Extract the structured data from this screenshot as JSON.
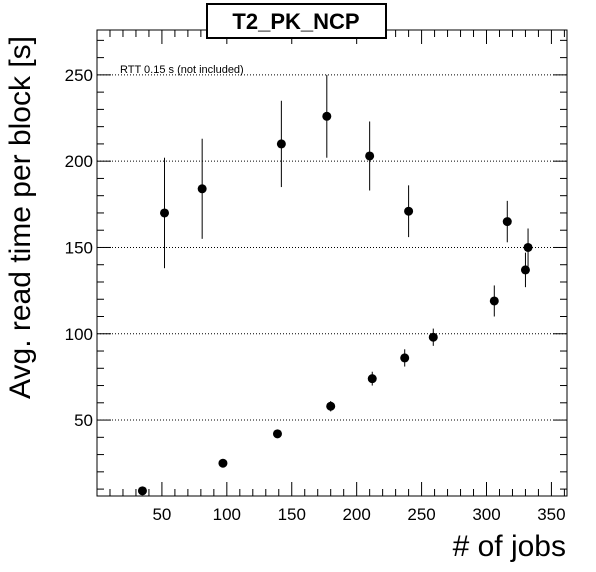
{
  "chart_data": {
    "type": "scatter",
    "title": "T2_PK_NCP",
    "xlabel": "# of jobs",
    "ylabel": "Avg. read time per block [s]",
    "annotation": "RTT 0.15 s (not included)",
    "xlim": [
      0,
      362
    ],
    "ylim": [
      6,
      276
    ],
    "x_ticks": [
      50,
      100,
      150,
      200,
      250,
      300,
      350
    ],
    "y_ticks": [
      50,
      100,
      150,
      200,
      250
    ],
    "grid": "horizontal dotted",
    "points": [
      {
        "x": 35,
        "y": 9,
        "err": 0
      },
      {
        "x": 52,
        "y": 170,
        "err": 32
      },
      {
        "x": 81,
        "y": 184,
        "err": 29
      },
      {
        "x": 97,
        "y": 25,
        "err": 0
      },
      {
        "x": 139,
        "y": 42,
        "err": 0
      },
      {
        "x": 142,
        "y": 210,
        "err": 25
      },
      {
        "x": 177,
        "y": 226,
        "err": 24
      },
      {
        "x": 180,
        "y": 58,
        "err": 3
      },
      {
        "x": 210,
        "y": 203,
        "err": 20
      },
      {
        "x": 212,
        "y": 74,
        "err": 4
      },
      {
        "x": 237,
        "y": 86,
        "err": 5
      },
      {
        "x": 240,
        "y": 171,
        "err": 15
      },
      {
        "x": 259,
        "y": 98,
        "err": 5
      },
      {
        "x": 306,
        "y": 119,
        "err": 9
      },
      {
        "x": 316,
        "y": 165,
        "err": 12
      },
      {
        "x": 330,
        "y": 137,
        "err": 10
      },
      {
        "x": 332,
        "y": 150,
        "err": 11
      }
    ]
  }
}
